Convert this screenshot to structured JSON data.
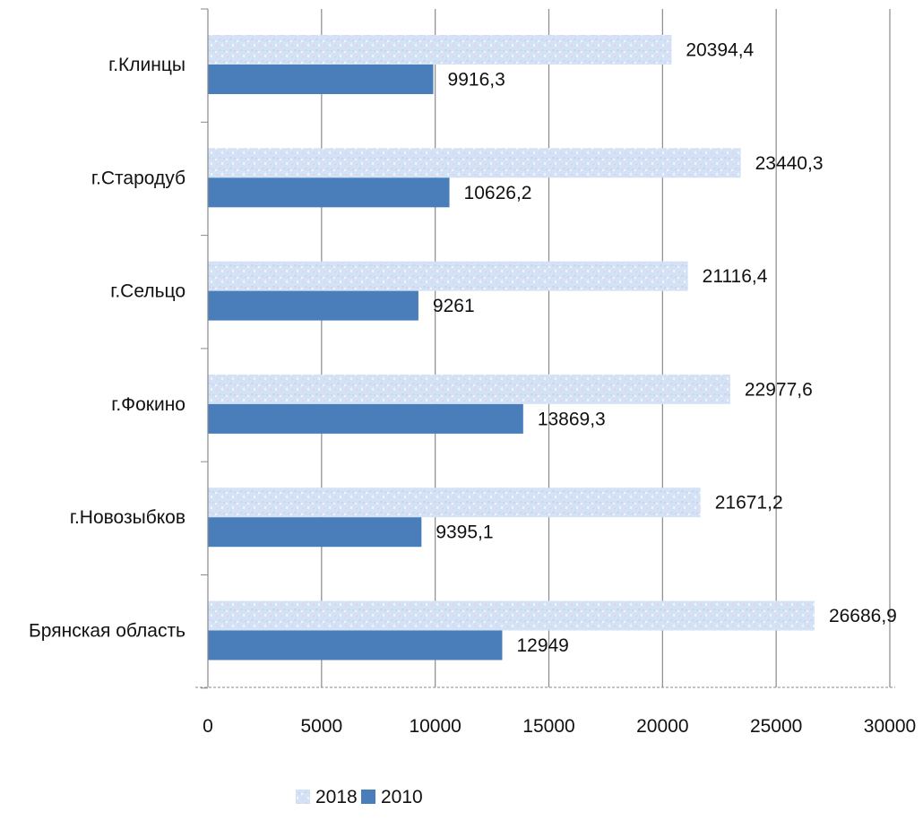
{
  "chart_data": {
    "type": "bar",
    "orientation": "horizontal",
    "categories": [
      "г.Клинцы",
      "г.Стародуб",
      "г.Сельцо",
      "г.Фокино",
      "г.Новозыбков",
      "Брянская область"
    ],
    "series": [
      {
        "name": "2018",
        "color": "#cfe0f3",
        "pattern": "speckled",
        "values": [
          20394.4,
          23440.3,
          21116.4,
          22977.6,
          21671.2,
          26686.9
        ],
        "labels": [
          "20394,4",
          "23440,3",
          "21116,4",
          "22977,6",
          "21671,2",
          "26686,9"
        ]
      },
      {
        "name": "2010",
        "color": "#4a7ebb",
        "values": [
          9916.3,
          10626.2,
          9261,
          13869.3,
          9395.1,
          12949
        ],
        "labels": [
          "9916,3",
          "10626,2",
          "9261",
          "13869,3",
          "9395,1",
          "12949"
        ]
      }
    ],
    "xlim": [
      0,
      30000
    ],
    "xticks": [
      "0",
      "5000",
      "10000",
      "15000",
      "20000",
      "25000",
      "30000"
    ],
    "grid": true,
    "legend_position": "bottom",
    "title": "",
    "xlabel": "",
    "ylabel": ""
  }
}
